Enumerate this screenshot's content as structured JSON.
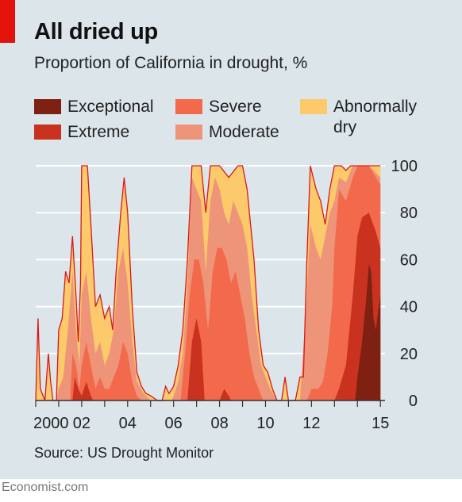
{
  "header": {
    "title": "All dried up",
    "subtitle": "Proportion of California in drought, %"
  },
  "legend": [
    {
      "label": "Exceptional",
      "color": "#7e2113"
    },
    {
      "label": "Severe",
      "color": "#f26a4b"
    },
    {
      "label": "Abnormally\ndry",
      "color": "#fcc96b"
    },
    {
      "label": "Extreme",
      "color": "#c8321f"
    },
    {
      "label": "Moderate",
      "color": "#ee9579"
    }
  ],
  "footer": {
    "source": "Source: US Drought Monitor",
    "brand": "Economist.com"
  },
  "chart_data": {
    "type": "area",
    "stacked": false,
    "title": "All dried up",
    "subtitle": "Proportion of California in drought, %",
    "xlabel": "",
    "ylabel": "",
    "x_unit": "year",
    "xlim": [
      2000.0,
      2015.2
    ],
    "ylim": [
      0,
      100
    ],
    "y_ticks": [
      0,
      20,
      40,
      60,
      80,
      100
    ],
    "y_axis_side": "right",
    "x_ticks": [
      {
        "value": 2000,
        "label": "2000"
      },
      {
        "value": 2002,
        "label": "02"
      },
      {
        "value": 2004,
        "label": "04"
      },
      {
        "value": 2006,
        "label": "06"
      },
      {
        "value": 2008,
        "label": "08"
      },
      {
        "value": 2010,
        "label": "10"
      },
      {
        "value": 2012,
        "label": "12"
      },
      {
        "value": 2015,
        "label": "15"
      }
    ],
    "grid": true,
    "outline_color": "#d7191c",
    "series": [
      {
        "name": "Abnormally dry",
        "color": "#fcc96b",
        "points": [
          [
            2000.0,
            0
          ],
          [
            2000.1,
            35
          ],
          [
            2000.2,
            5
          ],
          [
            2000.4,
            0
          ],
          [
            2000.55,
            20
          ],
          [
            2000.65,
            8
          ],
          [
            2000.75,
            0
          ],
          [
            2000.9,
            0
          ],
          [
            2001.0,
            30
          ],
          [
            2001.15,
            35
          ],
          [
            2001.3,
            55
          ],
          [
            2001.45,
            50
          ],
          [
            2001.6,
            70
          ],
          [
            2001.75,
            45
          ],
          [
            2001.85,
            25
          ],
          [
            2001.95,
            50
          ],
          [
            2002.0,
            100
          ],
          [
            2002.25,
            100
          ],
          [
            2002.4,
            75
          ],
          [
            2002.6,
            40
          ],
          [
            2002.8,
            45
          ],
          [
            2003.0,
            35
          ],
          [
            2003.2,
            40
          ],
          [
            2003.35,
            30
          ],
          [
            2003.5,
            55
          ],
          [
            2003.7,
            80
          ],
          [
            2003.85,
            95
          ],
          [
            2004.0,
            80
          ],
          [
            2004.2,
            40
          ],
          [
            2004.4,
            12
          ],
          [
            2004.6,
            6
          ],
          [
            2004.8,
            3
          ],
          [
            2005.0,
            2
          ],
          [
            2005.3,
            0
          ],
          [
            2005.5,
            0
          ],
          [
            2005.65,
            6
          ],
          [
            2005.8,
            3
          ],
          [
            2006.0,
            6
          ],
          [
            2006.2,
            15
          ],
          [
            2006.4,
            30
          ],
          [
            2006.6,
            60
          ],
          [
            2006.8,
            100
          ],
          [
            2007.0,
            100
          ],
          [
            2007.2,
            100
          ],
          [
            2007.4,
            80
          ],
          [
            2007.6,
            100
          ],
          [
            2007.8,
            100
          ],
          [
            2008.0,
            100
          ],
          [
            2008.4,
            95
          ],
          [
            2008.8,
            100
          ],
          [
            2009.0,
            100
          ],
          [
            2009.2,
            90
          ],
          [
            2009.5,
            60
          ],
          [
            2009.7,
            30
          ],
          [
            2009.9,
            15
          ],
          [
            2010.1,
            12
          ],
          [
            2010.3,
            5
          ],
          [
            2010.5,
            0
          ],
          [
            2010.7,
            0
          ],
          [
            2010.85,
            10
          ],
          [
            2011.0,
            0
          ],
          [
            2011.3,
            0
          ],
          [
            2011.5,
            10
          ],
          [
            2011.65,
            10
          ],
          [
            2011.8,
            60
          ],
          [
            2011.95,
            100
          ],
          [
            2012.2,
            90
          ],
          [
            2012.4,
            85
          ],
          [
            2012.6,
            75
          ],
          [
            2012.8,
            90
          ],
          [
            2013.0,
            100
          ],
          [
            2013.3,
            100
          ],
          [
            2013.5,
            98
          ],
          [
            2013.7,
            100
          ],
          [
            2014.0,
            100
          ],
          [
            2014.5,
            100
          ],
          [
            2015.0,
            100
          ]
        ]
      },
      {
        "name": "Moderate",
        "color": "#ee9579",
        "points": [
          [
            2000.0,
            0
          ],
          [
            2000.9,
            0
          ],
          [
            2001.0,
            5
          ],
          [
            2001.2,
            10
          ],
          [
            2001.4,
            30
          ],
          [
            2001.6,
            55
          ],
          [
            2001.75,
            30
          ],
          [
            2001.9,
            15
          ],
          [
            2002.0,
            45
          ],
          [
            2002.2,
            55
          ],
          [
            2002.4,
            35
          ],
          [
            2002.6,
            20
          ],
          [
            2002.8,
            25
          ],
          [
            2003.0,
            15
          ],
          [
            2003.2,
            20
          ],
          [
            2003.4,
            30
          ],
          [
            2003.6,
            55
          ],
          [
            2003.8,
            65
          ],
          [
            2004.0,
            50
          ],
          [
            2004.2,
            25
          ],
          [
            2004.4,
            8
          ],
          [
            2004.7,
            3
          ],
          [
            2005.0,
            0
          ],
          [
            2005.5,
            0
          ],
          [
            2005.9,
            0
          ],
          [
            2006.0,
            2
          ],
          [
            2006.2,
            8
          ],
          [
            2006.4,
            20
          ],
          [
            2006.6,
            50
          ],
          [
            2006.8,
            95
          ],
          [
            2007.0,
            90
          ],
          [
            2007.2,
            85
          ],
          [
            2007.4,
            55
          ],
          [
            2007.6,
            85
          ],
          [
            2007.8,
            95
          ],
          [
            2008.0,
            90
          ],
          [
            2008.2,
            80
          ],
          [
            2008.4,
            75
          ],
          [
            2008.6,
            85
          ],
          [
            2008.8,
            80
          ],
          [
            2009.0,
            75
          ],
          [
            2009.2,
            65
          ],
          [
            2009.4,
            45
          ],
          [
            2009.6,
            30
          ],
          [
            2009.8,
            15
          ],
          [
            2010.0,
            10
          ],
          [
            2010.2,
            5
          ],
          [
            2010.5,
            0
          ],
          [
            2011.5,
            0
          ],
          [
            2011.8,
            45
          ],
          [
            2011.95,
            75
          ],
          [
            2012.2,
            65
          ],
          [
            2012.4,
            60
          ],
          [
            2012.6,
            70
          ],
          [
            2012.8,
            80
          ],
          [
            2013.0,
            85
          ],
          [
            2013.2,
            95
          ],
          [
            2013.5,
            93
          ],
          [
            2013.8,
            100
          ],
          [
            2014.0,
            100
          ],
          [
            2014.5,
            100
          ],
          [
            2015.0,
            95
          ]
        ]
      },
      {
        "name": "Severe",
        "color": "#f26a4b",
        "points": [
          [
            2000.0,
            0
          ],
          [
            2001.5,
            0
          ],
          [
            2001.6,
            20
          ],
          [
            2001.75,
            15
          ],
          [
            2001.9,
            5
          ],
          [
            2002.0,
            15
          ],
          [
            2002.2,
            25
          ],
          [
            2002.4,
            15
          ],
          [
            2002.6,
            5
          ],
          [
            2002.8,
            10
          ],
          [
            2003.0,
            5
          ],
          [
            2003.2,
            5
          ],
          [
            2003.4,
            10
          ],
          [
            2003.6,
            15
          ],
          [
            2003.8,
            25
          ],
          [
            2004.0,
            20
          ],
          [
            2004.2,
            8
          ],
          [
            2004.4,
            2
          ],
          [
            2004.6,
            0
          ],
          [
            2006.3,
            0
          ],
          [
            2006.5,
            20
          ],
          [
            2006.7,
            45
          ],
          [
            2006.9,
            60
          ],
          [
            2007.1,
            60
          ],
          [
            2007.3,
            50
          ],
          [
            2007.5,
            30
          ],
          [
            2007.7,
            55
          ],
          [
            2007.9,
            65
          ],
          [
            2008.1,
            65
          ],
          [
            2008.3,
            60
          ],
          [
            2008.5,
            50
          ],
          [
            2008.7,
            55
          ],
          [
            2008.9,
            45
          ],
          [
            2009.1,
            35
          ],
          [
            2009.3,
            20
          ],
          [
            2009.5,
            10
          ],
          [
            2009.7,
            5
          ],
          [
            2009.9,
            0
          ],
          [
            2011.8,
            0
          ],
          [
            2012.0,
            5
          ],
          [
            2012.3,
            5
          ],
          [
            2012.5,
            8
          ],
          [
            2012.7,
            20
          ],
          [
            2012.9,
            40
          ],
          [
            2013.0,
            65
          ],
          [
            2013.2,
            90
          ],
          [
            2013.5,
            85
          ],
          [
            2013.8,
            95
          ],
          [
            2014.0,
            100
          ],
          [
            2014.5,
            100
          ],
          [
            2015.0,
            92
          ]
        ]
      },
      {
        "name": "Extreme",
        "color": "#c8321f",
        "points": [
          [
            2000.0,
            0
          ],
          [
            2001.6,
            0
          ],
          [
            2001.7,
            10
          ],
          [
            2001.85,
            5
          ],
          [
            2002.0,
            2
          ],
          [
            2002.2,
            8
          ],
          [
            2002.4,
            2
          ],
          [
            2002.5,
            0
          ],
          [
            2006.6,
            0
          ],
          [
            2006.8,
            25
          ],
          [
            2007.0,
            35
          ],
          [
            2007.2,
            25
          ],
          [
            2007.35,
            0
          ],
          [
            2008.0,
            0
          ],
          [
            2008.2,
            5
          ],
          [
            2008.4,
            2
          ],
          [
            2008.5,
            0
          ],
          [
            2013.0,
            0
          ],
          [
            2013.2,
            5
          ],
          [
            2013.5,
            15
          ],
          [
            2013.8,
            45
          ],
          [
            2014.0,
            70
          ],
          [
            2014.2,
            78
          ],
          [
            2014.5,
            80
          ],
          [
            2014.8,
            72
          ],
          [
            2015.0,
            65
          ]
        ]
      },
      {
        "name": "Exceptional",
        "color": "#7e2113",
        "points": [
          [
            2000.0,
            0
          ],
          [
            2013.9,
            0
          ],
          [
            2014.0,
            10
          ],
          [
            2014.2,
            25
          ],
          [
            2014.4,
            45
          ],
          [
            2014.5,
            58
          ],
          [
            2014.6,
            55
          ],
          [
            2014.7,
            35
          ],
          [
            2014.8,
            30
          ],
          [
            2015.0,
            45
          ]
        ]
      }
    ]
  }
}
